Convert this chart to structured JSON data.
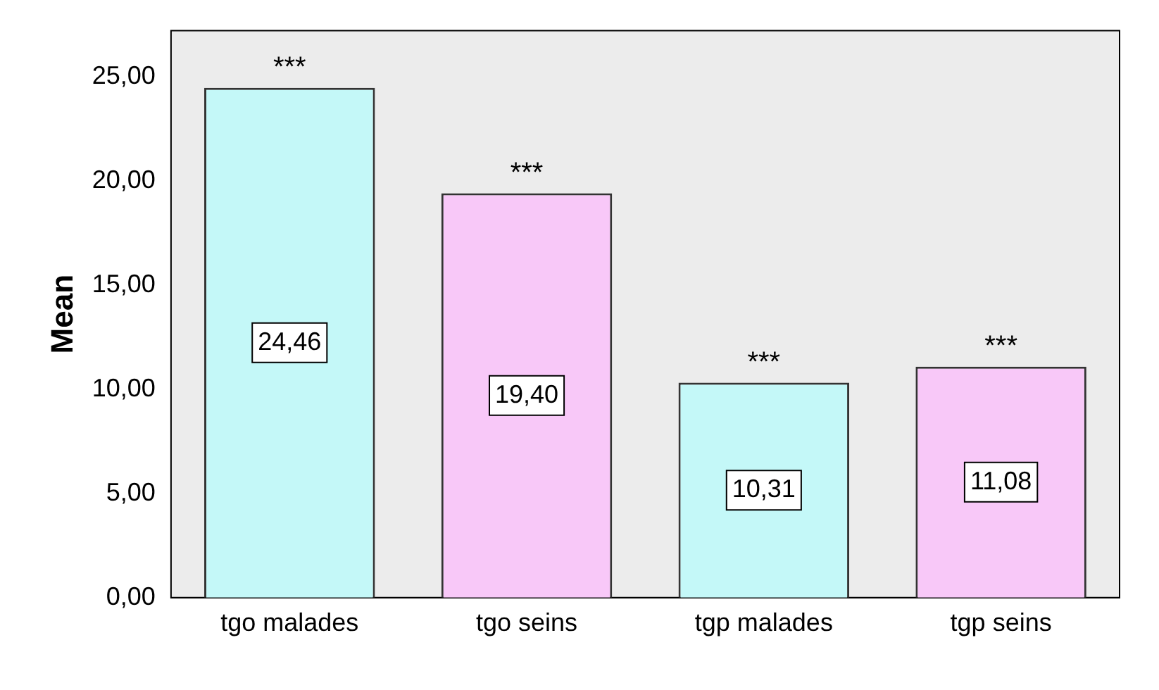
{
  "chart_data": {
    "type": "bar",
    "ylabel": "Mean",
    "categories": [
      "tgo malades",
      "tgo seins",
      "tgp malades",
      "tgp seins"
    ],
    "values": [
      24.46,
      19.4,
      10.31,
      11.08
    ],
    "colors": [
      "#c4f8f8",
      "#f8c8f8",
      "#c4f8f8",
      "#f8c8f8"
    ],
    "value_labels": [
      "24,46",
      "19,40",
      "10,31",
      "11,08"
    ],
    "ylim": [
      0,
      27.2
    ],
    "yticks": [
      {
        "value": 0,
        "label": "0,00"
      },
      {
        "value": 5,
        "label": "5,00"
      },
      {
        "value": 10,
        "label": "10,00"
      },
      {
        "value": 15,
        "label": "15,00"
      },
      {
        "value": 20,
        "label": "20,00"
      },
      {
        "value": 25,
        "label": "25,00"
      }
    ],
    "grid": false,
    "legend": false,
    "annotations": [
      {
        "text": "***",
        "x": "tgo malades",
        "y": 24.46
      },
      {
        "text": "***",
        "x": "tgo seins",
        "y": 19.4
      },
      {
        "text": "***",
        "x": "tgp malades",
        "y": 10.31
      },
      {
        "text": "***",
        "x": "tgp seins",
        "y": 11.08
      }
    ]
  }
}
